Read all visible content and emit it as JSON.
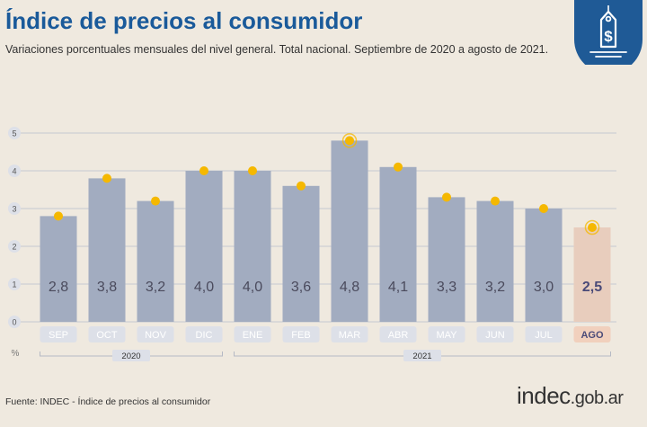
{
  "header": {
    "title": "Índice de precios al consumidor",
    "subtitle": "Variaciones porcentuales mensuales del nivel general. Total nacional. Septiembre de 2020 a agosto de 2021."
  },
  "logo": {
    "icon": "price-tag-dollar-icon",
    "color": "#1f5a96"
  },
  "footer": {
    "source": "Fuente: INDEC - Índice de precios al consumidor",
    "brand_main": "indec",
    "brand_suffix": ".gob.ar"
  },
  "chart_data": {
    "type": "bar",
    "categories": [
      "SEP",
      "OCT",
      "NOV",
      "DIC",
      "ENE",
      "FEB",
      "MAR",
      "ABR",
      "MAY",
      "JUN",
      "JUL",
      "AGO"
    ],
    "values": [
      2.8,
      3.8,
      3.2,
      4.0,
      4.0,
      3.6,
      4.8,
      4.1,
      3.3,
      3.2,
      3.0,
      2.5
    ],
    "value_labels": [
      "2,8",
      "3,8",
      "3,2",
      "4,0",
      "4,0",
      "3,6",
      "4,8",
      "4,1",
      "3,3",
      "3,2",
      "3,0",
      "2,5"
    ],
    "highlight": [
      "MAR",
      "AGO"
    ],
    "yticks": [
      "0",
      "1",
      "2",
      "3",
      "4",
      "5"
    ],
    "ylabel": "%",
    "ylim": [
      0,
      5
    ],
    "grid": true,
    "year_groups": [
      {
        "label": "2020",
        "from": "SEP",
        "to": "DIC"
      },
      {
        "label": "2021",
        "from": "ENE",
        "to": "AGO"
      }
    ],
    "colors": {
      "bar": "#a2acc0",
      "bar_last": "#e8cdbd",
      "dot": "#f5b800",
      "grid": "#c6c9d1",
      "tick_box": "#dde0e8",
      "tick_box_last": "#f1d0bd",
      "value_text": "#4a4a5c",
      "value_text_last": "#4a4a78"
    }
  }
}
